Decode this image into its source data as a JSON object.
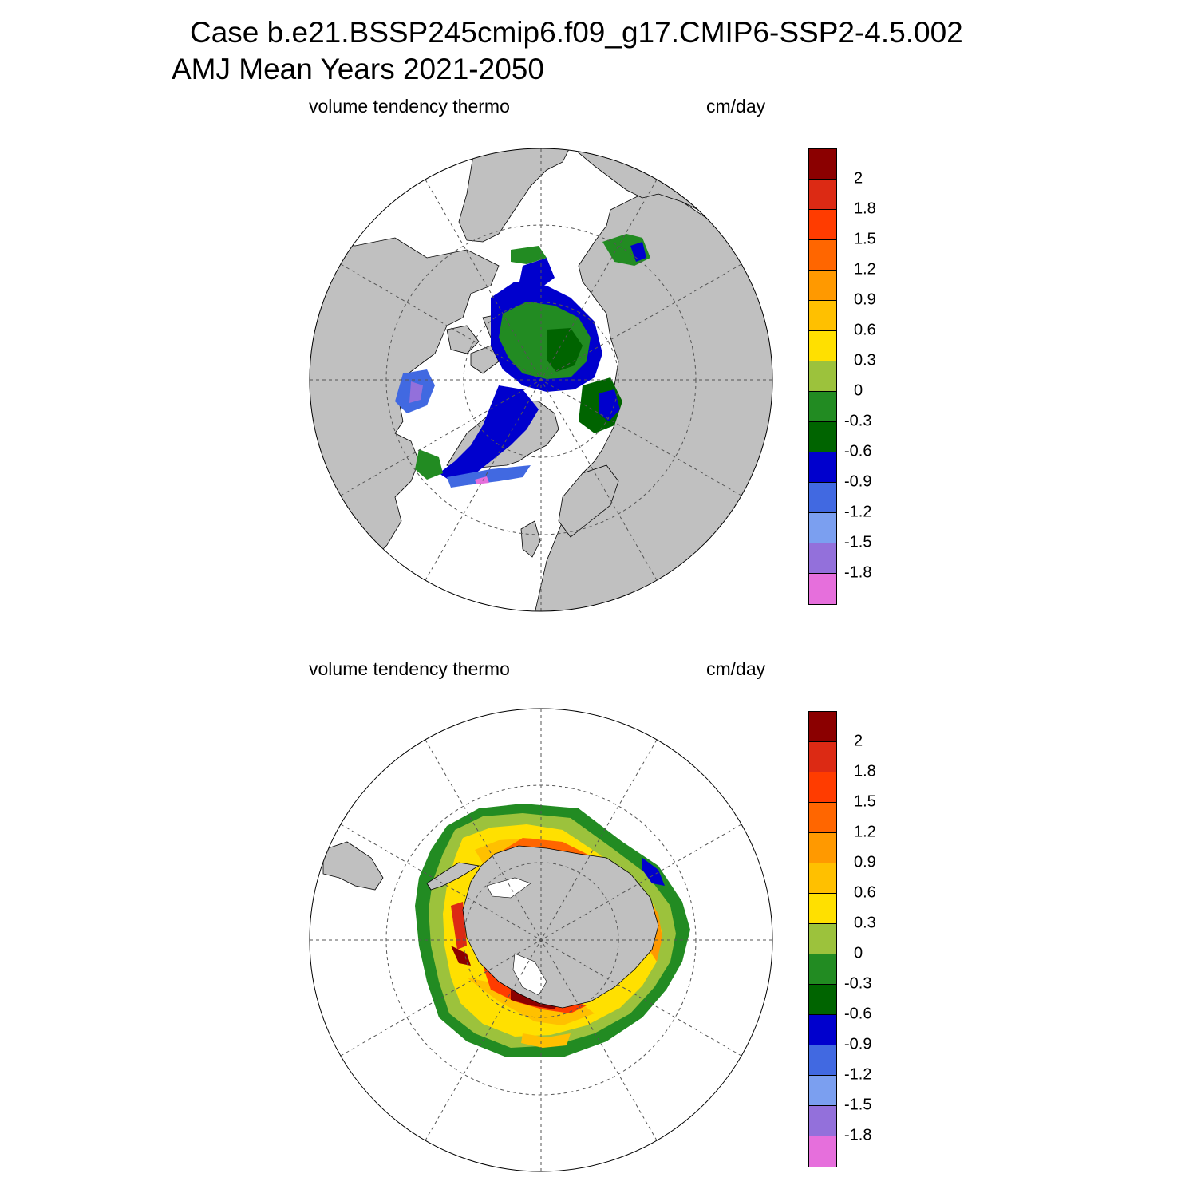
{
  "header": {
    "line1": "Case b.e21.BSSP245cmip6.f09_g17.CMIP6-SSP2-4.5.002",
    "line2": "AMJ Mean    Years 2021-2050"
  },
  "panels": [
    {
      "id": "arctic",
      "variable": "volume tendency thermo",
      "units": "cm/day",
      "hemisphere": "north"
    },
    {
      "id": "antarctic",
      "variable": "volume tendency thermo",
      "units": "cm/day",
      "hemisphere": "south"
    }
  ],
  "colorbar": {
    "colors": [
      "#8b0000",
      "#dc2a14",
      "#ff3c00",
      "#ff6600",
      "#ff9900",
      "#ffc000",
      "#ffe000",
      "#9cc23c",
      "#228b22",
      "#006400",
      "#0000cd",
      "#4169e1",
      "#7b9ff0",
      "#9370db",
      "#e66fdc"
    ],
    "labels": [
      "2",
      "1.8",
      "1.5",
      "1.2",
      "0.9",
      "0.6",
      "0.3",
      "0",
      "-0.3",
      "-0.6",
      "-0.9",
      "-1.2",
      "-1.5",
      "-1.8"
    ]
  },
  "colors": {
    "land": "#c0c0c0",
    "ocean": "#ffffff",
    "gridline": "#555555"
  }
}
